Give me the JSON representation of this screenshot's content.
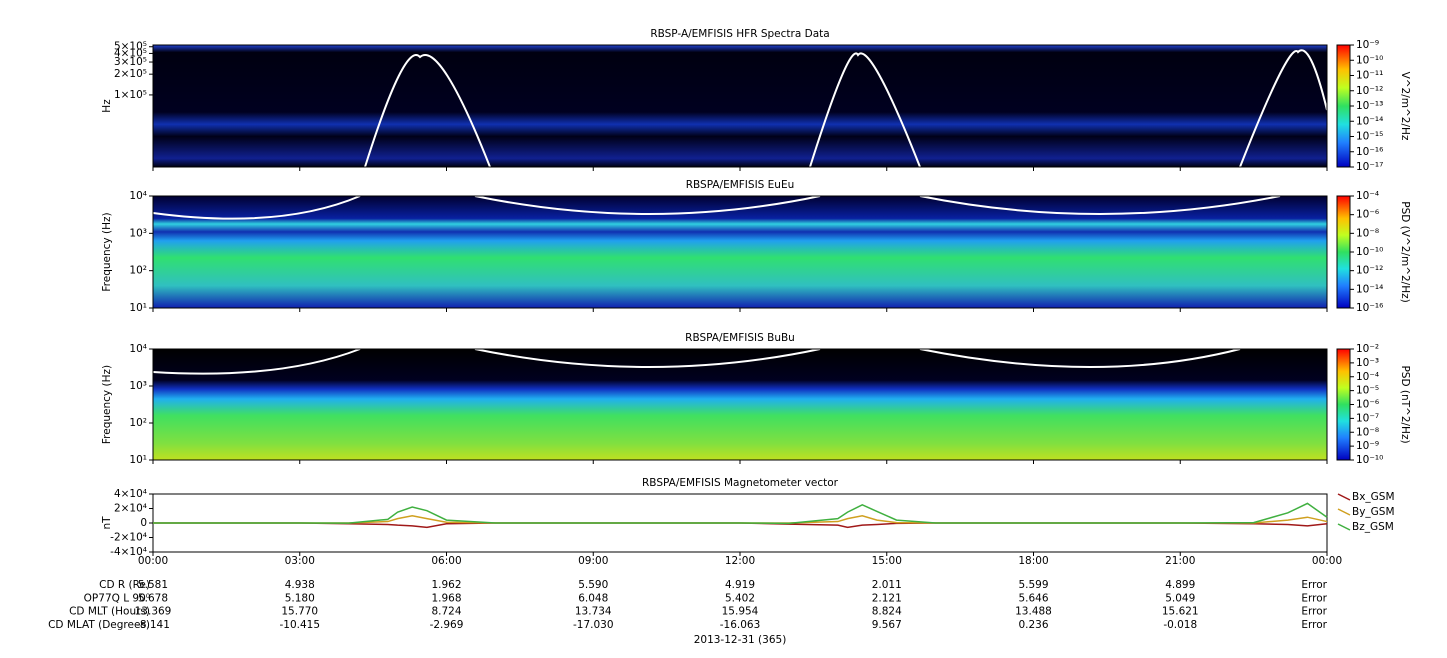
{
  "chart_data": [
    {
      "type": "spectrogram",
      "title": "RBSP-A/EMFISIS  HFR Spectra Data",
      "ylabel": "Hz",
      "log_y": true,
      "ylim": [
        9000,
        530000
      ],
      "yticks": [
        {
          "value": 100000,
          "label": "1×10⁵"
        },
        {
          "value": 200000,
          "label": "2×10⁵"
        },
        {
          "value": 300000,
          "label": "3×10⁵"
        },
        {
          "value": 400000,
          "label": "4×10⁵"
        },
        {
          "value": 500000,
          "label": "5×10⁵"
        }
      ],
      "colorbar_label": "V^2/m^2/Hz",
      "clim": [
        1e-17,
        1e-09
      ],
      "cticks": [
        {
          "value": 1e-09,
          "label": "10⁻⁹"
        },
        {
          "value": 1e-10,
          "label": "10⁻¹⁰"
        },
        {
          "value": 1e-11,
          "label": "10⁻¹¹"
        },
        {
          "value": 1e-12,
          "label": "10⁻¹²"
        },
        {
          "value": 1e-13,
          "label": "10⁻¹³"
        },
        {
          "value": 1e-14,
          "label": "10⁻¹⁴"
        },
        {
          "value": 1e-15,
          "label": "10⁻¹⁵"
        },
        {
          "value": 1e-16,
          "label": "10⁻¹⁶"
        },
        {
          "value": 1e-17,
          "label": "10⁻¹⁷"
        }
      ]
    },
    {
      "type": "spectrogram",
      "title": "RBSPA/EMFISIS  EuEu",
      "ylabel": "Frequency (Hz)",
      "log_y": true,
      "ylim": [
        10,
        10000
      ],
      "yticks": [
        {
          "value": 10,
          "label": "10¹"
        },
        {
          "value": 100,
          "label": "10²"
        },
        {
          "value": 1000,
          "label": "10³"
        },
        {
          "value": 10000,
          "label": "10⁴"
        }
      ],
      "colorbar_label": "PSD (V^2/m^2/Hz)",
      "clim": [
        1e-16,
        0.0001
      ],
      "cticks": [
        {
          "value": 0.0001,
          "label": "10⁻⁴"
        },
        {
          "value": 1e-06,
          "label": "10⁻⁶"
        },
        {
          "value": 1e-08,
          "label": "10⁻⁸"
        },
        {
          "value": 1e-10,
          "label": "10⁻¹⁰"
        },
        {
          "value": 1e-12,
          "label": "10⁻¹²"
        },
        {
          "value": 1e-14,
          "label": "10⁻¹⁴"
        },
        {
          "value": 1e-16,
          "label": "10⁻¹⁶"
        }
      ]
    },
    {
      "type": "spectrogram",
      "title": "RBSPA/EMFISIS  BuBu",
      "ylabel": "Frequency (Hz)",
      "log_y": true,
      "ylim": [
        10,
        10000
      ],
      "yticks": [
        {
          "value": 10,
          "label": "10¹"
        },
        {
          "value": 100,
          "label": "10²"
        },
        {
          "value": 1000,
          "label": "10³"
        },
        {
          "value": 10000,
          "label": "10⁴"
        }
      ],
      "colorbar_label": "PSD (nT^2/Hz)",
      "clim": [
        1e-10,
        0.01
      ],
      "cticks": [
        {
          "value": 0.01,
          "label": "10⁻²"
        },
        {
          "value": 0.001,
          "label": "10⁻³"
        },
        {
          "value": 0.0001,
          "label": "10⁻⁴"
        },
        {
          "value": 1e-05,
          "label": "10⁻⁵"
        },
        {
          "value": 1e-06,
          "label": "10⁻⁶"
        },
        {
          "value": 1e-07,
          "label": "10⁻⁷"
        },
        {
          "value": 1e-08,
          "label": "10⁻⁸"
        },
        {
          "value": 1e-09,
          "label": "10⁻⁹"
        },
        {
          "value": 1e-10,
          "label": "10⁻¹⁰"
        }
      ]
    },
    {
      "type": "line",
      "title": "RBSPA/EMFISIS  Magnetometer vector",
      "ylabel": "nT",
      "ylim": [
        -40000,
        40000
      ],
      "yticks": [
        {
          "value": 40000,
          "label": "4×10⁴"
        },
        {
          "value": 20000,
          "label": "2×10⁴"
        },
        0,
        {
          "value": -20000,
          "label": "-2×10⁴"
        },
        {
          "value": -40000,
          "label": "-4×10⁴"
        }
      ],
      "xlim": [
        0,
        24
      ],
      "xticks": [
        {
          "value": 0,
          "label": "00:00"
        },
        {
          "value": 3,
          "label": "03:00"
        },
        {
          "value": 6,
          "label": "06:00"
        },
        {
          "value": 9,
          "label": "09:00"
        },
        {
          "value": 12,
          "label": "12:00"
        },
        {
          "value": 15,
          "label": "15:00"
        },
        {
          "value": 18,
          "label": "18:00"
        },
        {
          "value": 21,
          "label": "21:00"
        },
        {
          "value": 24,
          "label": "00:00"
        }
      ],
      "x": [
        0,
        3,
        4,
        4.8,
        5.0,
        5.3,
        5.6,
        6,
        7,
        9,
        12,
        13,
        14,
        14.2,
        14.5,
        14.8,
        15.2,
        16,
        18,
        21,
        22.5,
        23.2,
        23.6,
        24
      ],
      "series": [
        {
          "name": "Bx_GSM",
          "color": "#a01818",
          "values": [
            0,
            0,
            -1000,
            -2000,
            -3000,
            -4000,
            -6000,
            -1000,
            0,
            0,
            0,
            -1500,
            -3000,
            -6000,
            -3000,
            -2000,
            -500,
            0,
            0,
            0,
            -1000,
            -2000,
            -4000,
            -1000
          ]
        },
        {
          "name": "By_GSM",
          "color": "#d0a020",
          "values": [
            0,
            0,
            0,
            2000,
            6000,
            10000,
            6000,
            1000,
            0,
            0,
            0,
            0,
            2000,
            6000,
            10000,
            4000,
            500,
            0,
            0,
            0,
            0,
            4000,
            8000,
            2000
          ]
        },
        {
          "name": "Bz_GSM",
          "color": "#40b040",
          "values": [
            0,
            0,
            -200,
            5000,
            15000,
            22000,
            17000,
            4000,
            0,
            0,
            0,
            -500,
            6000,
            15000,
            25000,
            16000,
            4000,
            0,
            0,
            0,
            500,
            14000,
            27000,
            8000
          ]
        }
      ]
    }
  ],
  "ephemeris": {
    "rows": [
      {
        "label": "CD R (Re)",
        "values": [
          "5.581",
          "4.938",
          "1.962",
          "5.590",
          "4.919",
          "2.011",
          "5.599",
          "4.899",
          "Error"
        ]
      },
      {
        "label": "OP77Q L 90⁰",
        "values": [
          "5.678",
          "5.180",
          "1.968",
          "6.048",
          "5.402",
          "2.121",
          "5.646",
          "5.049",
          "Error"
        ]
      },
      {
        "label": "CD MLT (Hours)",
        "values": [
          "13.369",
          "15.770",
          "8.724",
          "13.734",
          "15.954",
          "8.824",
          "13.488",
          "15.621",
          "Error"
        ]
      },
      {
        "label": "CD MLAT (Degrees)",
        "values": [
          "-8.141",
          "-10.415",
          "-2.969",
          "-17.030",
          "-16.063",
          "9.567",
          "0.236",
          "-0.018",
          "Error"
        ]
      }
    ],
    "date": "2013-12-31 (365)"
  }
}
